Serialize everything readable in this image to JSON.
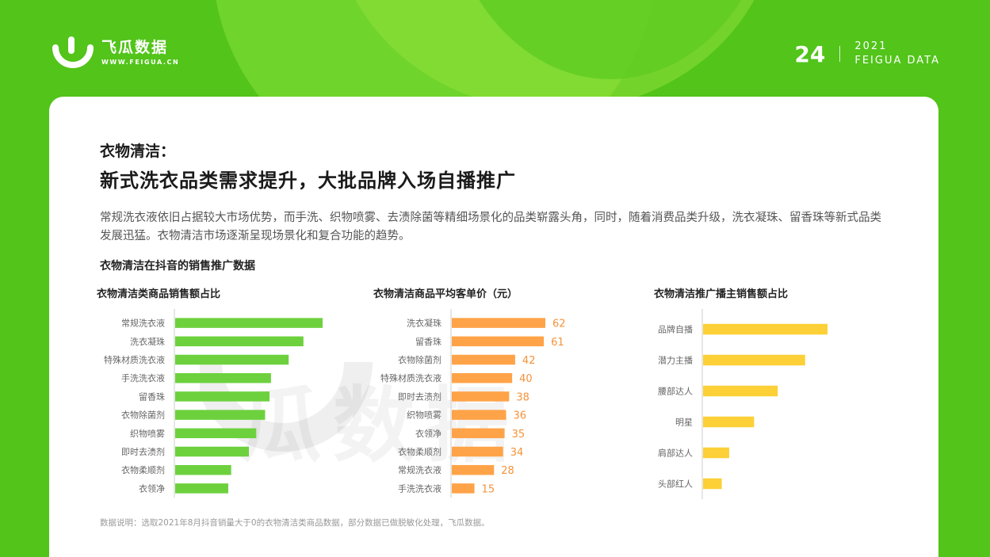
{
  "header": {
    "brand_name": "飞瓜数据",
    "brand_url": "WWW.FEIGUA.CN",
    "page_number": "24",
    "year": "2021",
    "report_name": "FEIGUA DATA"
  },
  "content": {
    "subtitle": "衣物清洁：",
    "title": "新式洗衣品类需求提升，大批品牌入场自播推广",
    "description": "常规洗衣液依旧占据较大市场优势，而手洗、织物喷雾、去渍除菌等精细场景化的品类崭露头角，同时，随着消费品类升级，洗衣凝珠、留香珠等新式品类发展迅猛。衣物清洁市场逐渐呈现场景化和复合功能的趋势。",
    "section_title": "衣物清洁在抖音的销售推广数据",
    "watermark": "瓜数据",
    "note": "数据说明：选取2021年8月抖音销量大于0的衣物清洁类商品数据，部分数据已做脱敏化处理，飞瓜数据。"
  },
  "chart_data": [
    {
      "type": "bar",
      "orientation": "horizontal",
      "title": "衣物清洁类商品销售额占比",
      "color": "#6dd13e",
      "categories": [
        "常规洗衣液",
        "洗衣凝珠",
        "特殊材质洗衣液",
        "手洗洗衣液",
        "留香珠",
        "衣物除菌剂",
        "织物喷雾",
        "即时去渍剂",
        "衣物柔顺剂",
        "衣领净"
      ],
      "values": [
        100,
        87,
        77,
        65,
        64,
        61,
        55,
        50,
        38,
        36
      ],
      "show_values": false
    },
    {
      "type": "bar",
      "orientation": "horizontal",
      "title": "衣物清洁商品平均客单价（元）",
      "color": "#ffa348",
      "label_color": "#f5933a",
      "categories": [
        "洗衣凝珠",
        "留香珠",
        "衣物除菌剂",
        "特殊材质洗衣液",
        "即时去渍剂",
        "织物喷雾",
        "衣领净",
        "衣物柔顺剂",
        "常规洗衣液",
        "手洗洗衣液"
      ],
      "values": [
        62,
        61,
        42,
        40,
        38,
        36,
        35,
        34,
        28,
        15
      ],
      "show_values": true
    },
    {
      "type": "bar",
      "orientation": "horizontal",
      "title": "衣物清洁推广播主销售额占比",
      "color": "#fcd036",
      "categories": [
        "品牌自播",
        "潜力主播",
        "腰部达人",
        "明星",
        "肩部达人",
        "头部红人"
      ],
      "values": [
        100,
        82,
        60,
        41,
        21,
        15
      ],
      "show_values": false
    }
  ]
}
